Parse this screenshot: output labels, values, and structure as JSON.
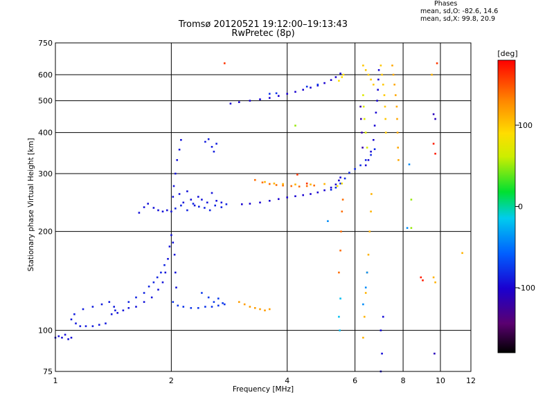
{
  "chart_data": {
    "type": "scatter",
    "title": "Tromsø 20120521 19:12:00–19:13:43",
    "subtitle": "RwPretec (8p)",
    "phases": {
      "heading": "Phases",
      "line1": "mean, sd,O: -82.6, 14.6",
      "line2": "mean, sd,X:  99.8, 20.9"
    },
    "xlabel": "Frequency [MHz]",
    "ylabel": "Stationary phase Virtual Height [km]",
    "x_scale": "log",
    "y_scale": "log",
    "xlim": [
      1,
      12
    ],
    "ylim": [
      75,
      750
    ],
    "x_ticks": [
      1,
      2,
      4,
      6,
      8,
      10,
      12
    ],
    "x_tick_labels": [
      "1",
      "2",
      "4",
      "6",
      "8",
      "10",
      "12"
    ],
    "y_ticks": [
      75,
      100,
      200,
      300,
      400,
      500,
      600,
      750
    ],
    "y_tick_labels": [
      "75",
      "100",
      "200",
      "300",
      "400",
      "500",
      "600",
      "750"
    ],
    "x_gridlines": [
      2,
      4,
      6,
      8,
      10
    ],
    "y_gridlines": [
      100,
      200,
      300,
      400,
      500,
      600
    ],
    "grid": true,
    "colorbar": {
      "label": "[deg]",
      "min": -180,
      "max": 180,
      "ticks": [
        -100,
        0,
        100
      ],
      "tick_labels": [
        "-100",
        "0",
        "100"
      ]
    },
    "series": [
      {
        "phase": -95,
        "points": [
          [
            1.0,
            95
          ],
          [
            1.02,
            96
          ],
          [
            1.04,
            95
          ],
          [
            1.06,
            97
          ],
          [
            1.08,
            94
          ],
          [
            1.1,
            95
          ]
        ]
      },
      {
        "phase": -90,
        "points": [
          [
            1.1,
            108
          ],
          [
            1.13,
            105
          ],
          [
            1.16,
            103
          ],
          [
            1.2,
            103
          ],
          [
            1.25,
            103
          ],
          [
            1.3,
            104
          ],
          [
            1.35,
            105
          ],
          [
            1.4,
            112
          ],
          [
            1.43,
            115
          ]
        ]
      },
      {
        "phase": -88,
        "points": [
          [
            1.12,
            112
          ],
          [
            1.18,
            116
          ],
          [
            1.25,
            118
          ],
          [
            1.32,
            120
          ],
          [
            1.38,
            122
          ],
          [
            1.42,
            118
          ]
        ]
      },
      {
        "phase": -92,
        "points": [
          [
            1.45,
            113
          ],
          [
            1.5,
            115
          ],
          [
            1.55,
            117
          ],
          [
            1.62,
            118
          ],
          [
            1.7,
            122
          ],
          [
            1.78,
            126
          ],
          [
            1.85,
            133
          ],
          [
            1.9,
            140
          ],
          [
            1.93,
            150
          ],
          [
            1.96,
            165
          ],
          [
            1.98,
            180
          ],
          [
            2.0,
            195
          ],
          [
            2.02,
            185
          ],
          [
            2.04,
            170
          ],
          [
            2.05,
            150
          ],
          [
            2.06,
            135
          ]
        ]
      },
      {
        "phase": -85,
        "points": [
          [
            1.55,
            122
          ],
          [
            1.62,
            126
          ],
          [
            1.7,
            130
          ],
          [
            1.75,
            136
          ],
          [
            1.8,
            140
          ],
          [
            1.84,
            145
          ],
          [
            1.88,
            150
          ],
          [
            1.92,
            158
          ]
        ]
      },
      {
        "phase": -78,
        "points": [
          [
            2.02,
            122
          ],
          [
            2.08,
            119
          ],
          [
            2.15,
            118
          ],
          [
            2.25,
            117
          ],
          [
            2.35,
            117
          ],
          [
            2.45,
            118
          ],
          [
            2.55,
            118
          ],
          [
            2.65,
            119
          ],
          [
            2.75,
            120
          ]
        ]
      },
      {
        "phase": -75,
        "points": [
          [
            2.4,
            130
          ],
          [
            2.5,
            126
          ],
          [
            2.58,
            122
          ],
          [
            2.65,
            125
          ],
          [
            2.72,
            121
          ]
        ]
      },
      {
        "phase": -93,
        "points": [
          [
            1.65,
            228
          ],
          [
            1.7,
            237
          ],
          [
            1.74,
            243
          ],
          [
            1.8,
            236
          ],
          [
            1.85,
            232
          ],
          [
            1.9,
            230
          ],
          [
            1.95,
            232
          ]
        ]
      },
      {
        "phase": -92,
        "points": [
          [
            2.0,
            230
          ],
          [
            2.02,
            255
          ],
          [
            2.03,
            275
          ],
          [
            2.05,
            300
          ],
          [
            2.07,
            330
          ],
          [
            2.1,
            355
          ],
          [
            2.12,
            380
          ],
          [
            2.1,
            260
          ],
          [
            2.15,
            245
          ],
          [
            2.2,
            265
          ],
          [
            2.25,
            250
          ],
          [
            2.3,
            240
          ],
          [
            2.35,
            255
          ],
          [
            2.4,
            250
          ],
          [
            2.48,
            245
          ],
          [
            2.55,
            262
          ],
          [
            2.62,
            248
          ],
          [
            2.7,
            245
          ]
        ]
      },
      {
        "phase": -85,
        "points": [
          [
            2.05,
            235
          ],
          [
            2.12,
            240
          ],
          [
            2.2,
            232
          ],
          [
            2.28,
            243
          ],
          [
            2.36,
            238
          ],
          [
            2.44,
            236
          ],
          [
            2.52,
            232
          ],
          [
            2.6,
            240
          ],
          [
            2.7,
            237
          ],
          [
            2.78,
            242
          ]
        ]
      },
      {
        "phase": -88,
        "points": [
          [
            2.45,
            375
          ],
          [
            2.5,
            382
          ],
          [
            2.55,
            362
          ],
          [
            2.58,
            350
          ],
          [
            2.62,
            370
          ]
        ]
      },
      {
        "phase": -100,
        "points": [
          [
            3.05,
            242
          ],
          [
            3.2,
            243
          ],
          [
            3.4,
            245
          ],
          [
            3.6,
            248
          ],
          [
            3.8,
            251
          ],
          [
            4.0,
            254
          ],
          [
            4.2,
            256
          ],
          [
            4.4,
            258
          ],
          [
            4.6,
            260
          ],
          [
            4.8,
            263
          ],
          [
            5.0,
            267
          ],
          [
            5.2,
            272
          ],
          [
            5.35,
            278
          ],
          [
            5.45,
            286
          ],
          [
            5.5,
            292
          ]
        ]
      },
      {
        "phase": -82,
        "points": [
          [
            5.2,
            268
          ],
          [
            5.35,
            272
          ],
          [
            5.5,
            280
          ],
          [
            5.65,
            290
          ],
          [
            5.8,
            302
          ],
          [
            6.0,
            310
          ],
          [
            6.2,
            318
          ],
          [
            6.4,
            330
          ],
          [
            6.6,
            342
          ],
          [
            6.75,
            356
          ]
        ]
      },
      {
        "phase": 140,
        "points": [
          [
            3.3,
            287
          ],
          [
            3.45,
            282
          ],
          [
            3.6,
            279
          ],
          [
            3.75,
            277
          ],
          [
            3.9,
            276
          ],
          [
            4.1,
            275
          ],
          [
            4.3,
            274
          ],
          [
            4.5,
            275
          ],
          [
            4.7,
            276
          ]
        ]
      },
      {
        "phase": 110,
        "points": [
          [
            3.5,
            283
          ],
          [
            3.7,
            280
          ],
          [
            3.9,
            279
          ],
          [
            4.2,
            278
          ],
          [
            4.6,
            278
          ],
          [
            5.0,
            279
          ]
        ]
      },
      {
        "phase": 85,
        "points": [
          [
            5.4,
            275
          ],
          [
            5.55,
            280
          ]
        ]
      },
      {
        "phase": -98,
        "points": [
          [
            6.7,
            380
          ],
          [
            6.75,
            420
          ],
          [
            6.8,
            460
          ],
          [
            6.85,
            500
          ],
          [
            6.88,
            540
          ],
          [
            6.9,
            580
          ],
          [
            6.92,
            620
          ],
          [
            6.6,
            350
          ],
          [
            6.5,
            330
          ],
          [
            6.4,
            318
          ]
        ]
      },
      {
        "phase": -100,
        "points": [
          [
            2.85,
            490
          ],
          [
            3.0,
            495
          ],
          [
            3.2,
            500
          ],
          [
            3.4,
            505
          ],
          [
            3.6,
            510
          ],
          [
            3.8,
            517
          ],
          [
            4.0,
            525
          ],
          [
            4.2,
            532
          ],
          [
            4.4,
            540
          ],
          [
            4.6,
            548
          ],
          [
            4.8,
            556
          ],
          [
            5.0,
            566
          ],
          [
            5.2,
            578
          ],
          [
            5.35,
            590
          ],
          [
            5.5,
            605
          ]
        ]
      },
      {
        "phase": -78,
        "points": [
          [
            3.6,
            525
          ],
          [
            3.75,
            527
          ],
          [
            4.5,
            552
          ],
          [
            4.8,
            560
          ]
        ]
      },
      {
        "phase": 90,
        "points": [
          [
            5.45,
            575
          ],
          [
            5.55,
            590
          ],
          [
            5.6,
            600
          ]
        ]
      },
      {
        "phase": 100,
        "points": [
          [
            6.3,
            640
          ],
          [
            6.4,
            620
          ],
          [
            6.5,
            600
          ],
          [
            6.6,
            580
          ],
          [
            6.7,
            560
          ],
          [
            7.0,
            640
          ],
          [
            7.05,
            600
          ],
          [
            7.1,
            560
          ],
          [
            7.15,
            520
          ],
          [
            7.18,
            480
          ],
          [
            7.2,
            440
          ],
          [
            7.22,
            400
          ]
        ]
      },
      {
        "phase": 115,
        "points": [
          [
            7.5,
            640
          ],
          [
            7.55,
            600
          ],
          [
            7.6,
            560
          ],
          [
            7.65,
            520
          ],
          [
            7.7,
            480
          ],
          [
            7.72,
            440
          ],
          [
            7.74,
            400
          ],
          [
            7.76,
            360
          ],
          [
            7.78,
            330
          ]
        ]
      },
      {
        "phase": 70,
        "points": [
          [
            6.3,
            520
          ],
          [
            6.32,
            480
          ],
          [
            6.35,
            440
          ],
          [
            6.4,
            400
          ],
          [
            6.45,
            360
          ]
        ]
      },
      {
        "phase": -120,
        "points": [
          [
            6.2,
            480
          ],
          [
            6.22,
            440
          ],
          [
            6.25,
            400
          ],
          [
            6.28,
            360
          ]
        ]
      },
      {
        "phase": 120,
        "points": [
          [
            3.0,
            122
          ],
          [
            3.1,
            120
          ],
          [
            3.2,
            118
          ],
          [
            3.3,
            117
          ],
          [
            3.4,
            116
          ],
          [
            3.5,
            115
          ],
          [
            3.6,
            116
          ]
        ]
      },
      {
        "phase": 140,
        "points": [
          [
            5.45,
            150
          ],
          [
            5.5,
            175
          ],
          [
            5.52,
            200
          ],
          [
            5.55,
            230
          ],
          [
            5.58,
            250
          ]
        ]
      },
      {
        "phase": 110,
        "points": [
          [
            6.3,
            95
          ],
          [
            6.35,
            110
          ],
          [
            6.4,
            130
          ],
          [
            6.45,
            150
          ],
          [
            6.5,
            170
          ],
          [
            6.55,
            200
          ],
          [
            6.6,
            230
          ],
          [
            6.62,
            260
          ]
        ]
      },
      {
        "phase": -40,
        "points": [
          [
            6.3,
            120
          ],
          [
            6.4,
            135
          ],
          [
            6.45,
            150
          ]
        ]
      },
      {
        "phase": -20,
        "points": [
          [
            5.45,
            110
          ],
          [
            5.5,
            125
          ],
          [
            5.48,
            100
          ]
        ]
      },
      {
        "phase": -95,
        "points": [
          [
            7.0,
            100
          ],
          [
            7.05,
            85
          ],
          [
            7.1,
            110
          ],
          [
            7.0,
            75
          ]
        ]
      },
      {
        "phase": 160,
        "points": [
          [
            2.75,
            650
          ],
          [
            9.8,
            650
          ],
          [
            4.5,
            280
          ],
          [
            4.25,
            298
          ]
        ]
      },
      {
        "phase": 170,
        "points": [
          [
            8.9,
            145
          ],
          [
            9.0,
            142
          ],
          [
            9.6,
            370
          ],
          [
            9.7,
            345
          ]
        ]
      },
      {
        "phase": -110,
        "points": [
          [
            9.6,
            455
          ],
          [
            9.7,
            440
          ],
          [
            9.65,
            85
          ]
        ]
      },
      {
        "phase": 110,
        "points": [
          [
            9.6,
            145
          ],
          [
            9.7,
            140
          ],
          [
            11.4,
            172
          ],
          [
            9.5,
            600
          ]
        ]
      },
      {
        "phase": 50,
        "points": [
          [
            8.4,
            205
          ],
          [
            8.4,
            250
          ],
          [
            4.2,
            420
          ]
        ]
      },
      {
        "phase": -40,
        "points": [
          [
            8.2,
            205
          ],
          [
            8.3,
            320
          ],
          [
            5.1,
            215
          ]
        ]
      }
    ]
  }
}
